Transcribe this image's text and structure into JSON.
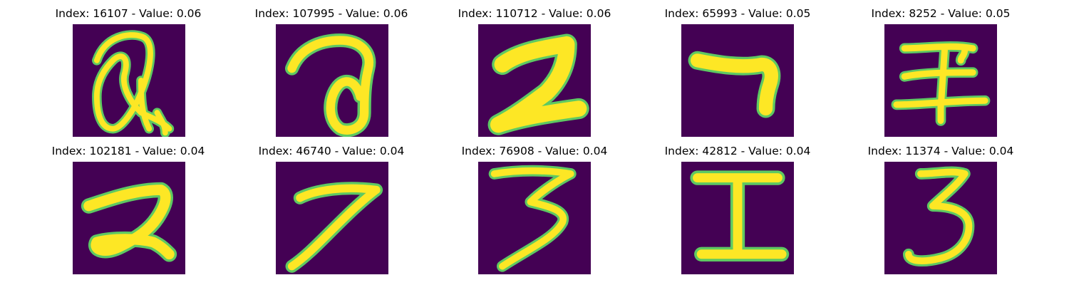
{
  "colors": {
    "background": "#440154",
    "stroke": "#fde725",
    "stroke_edge": "#21918c",
    "stroke_mid": "#5ec962"
  },
  "grid": [
    {
      "title": "Index: 16107 - Value: 0.06",
      "glyph": "scribble-a"
    },
    {
      "title": "Index: 107995 - Value: 0.06",
      "glyph": "loop-a"
    },
    {
      "title": "Index: 110712 - Value: 0.06",
      "glyph": "thick-2"
    },
    {
      "title": "Index: 65993 - Value: 0.05",
      "glyph": "seven-hook"
    },
    {
      "title": "Index: 8252 - Value: 0.05",
      "glyph": "cross-I"
    },
    {
      "title": "Index: 102181 - Value: 0.04",
      "glyph": "two"
    },
    {
      "title": "Index: 46740 - Value: 0.04",
      "glyph": "seven"
    },
    {
      "title": "Index: 76908 - Value: 0.04",
      "glyph": "three-tail"
    },
    {
      "title": "Index: 42812 - Value: 0.04",
      "glyph": "capital-I"
    },
    {
      "title": "Index: 11374 - Value: 0.04",
      "glyph": "three"
    }
  ]
}
